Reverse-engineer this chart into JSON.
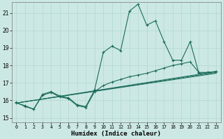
{
  "xlabel": "Humidex (Indice chaleur)",
  "bg_color": "#cce8e4",
  "line_color": "#1a6b5a",
  "grid_color": "#b0d8d0",
  "xlim": [
    -0.5,
    23.5
  ],
  "ylim": [
    14.75,
    21.6
  ],
  "yticks": [
    15,
    16,
    17,
    18,
    19,
    20,
    21
  ],
  "xticks": [
    0,
    1,
    2,
    3,
    4,
    5,
    6,
    7,
    8,
    9,
    10,
    11,
    12,
    13,
    14,
    15,
    16,
    17,
    18,
    19,
    20,
    21,
    22,
    23
  ],
  "line1_x": [
    0,
    1,
    2,
    3,
    4,
    5,
    6,
    7,
    8,
    9,
    10,
    11,
    12,
    13,
    14,
    15,
    16,
    17,
    18,
    19,
    20,
    21,
    22,
    23
  ],
  "line1_y": [
    15.9,
    15.65,
    15.5,
    16.35,
    16.5,
    16.25,
    16.15,
    15.75,
    15.65,
    16.6,
    18.75,
    19.1,
    18.85,
    21.1,
    21.5,
    20.3,
    20.55,
    19.35,
    18.3,
    18.3,
    19.35,
    17.55,
    17.6,
    17.65
  ],
  "line2_x": [
    0,
    1,
    2,
    3,
    4,
    5,
    6,
    7,
    8,
    9,
    10,
    11,
    12,
    13,
    14,
    15,
    16,
    17,
    18,
    19,
    20,
    21,
    22,
    23
  ],
  "line2_y": [
    15.85,
    15.7,
    15.5,
    16.3,
    16.45,
    16.2,
    16.1,
    15.7,
    15.6,
    16.5,
    16.85,
    17.05,
    17.2,
    17.35,
    17.45,
    17.55,
    17.7,
    17.85,
    18.0,
    18.1,
    18.2,
    17.6,
    17.6,
    17.65
  ],
  "line3_x": [
    0,
    23
  ],
  "line3_y": [
    15.85,
    17.55
  ],
  "line4_x": [
    0,
    23
  ],
  "line4_y": [
    15.85,
    17.6
  ],
  "line5_x": [
    0,
    23
  ],
  "line5_y": [
    15.85,
    17.65
  ]
}
